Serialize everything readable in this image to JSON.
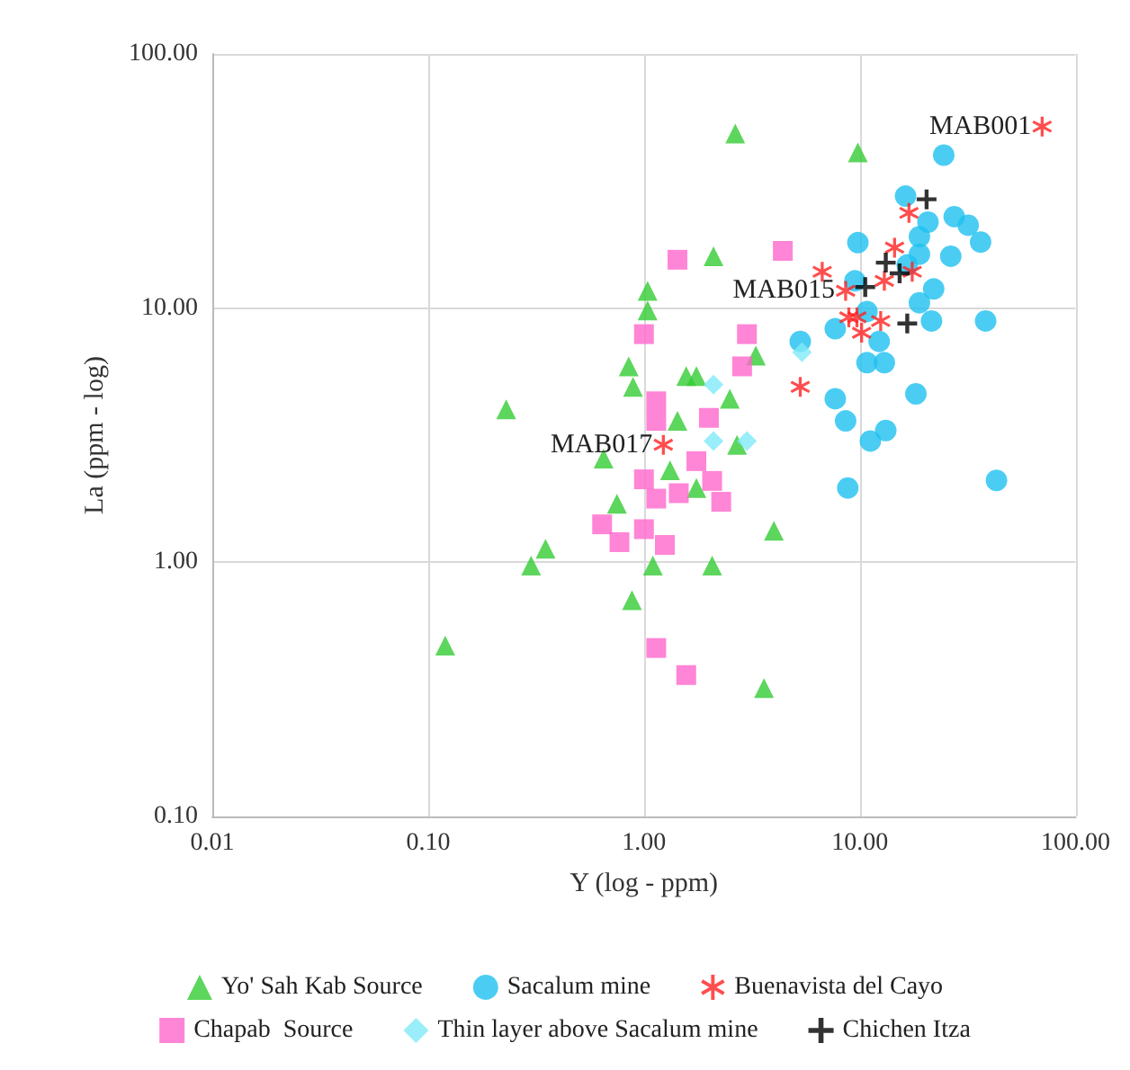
{
  "chart_data": {
    "type": "scatter",
    "xlabel": "Y (log - ppm)",
    "ylabel": "La (ppm - log)",
    "log": "xy",
    "grid": true,
    "legend": "bottom",
    "xlim": [
      0.01,
      100
    ],
    "ylim": [
      0.1,
      100
    ],
    "xticks": [
      {
        "value": 0.01,
        "label": "0.01"
      },
      {
        "value": 0.1,
        "label": "0.10"
      },
      {
        "value": 1,
        "label": "1.00"
      },
      {
        "value": 10,
        "label": "10.00"
      },
      {
        "value": 100,
        "label": "100.00"
      }
    ],
    "yticks": [
      {
        "value": 0.1,
        "label": "0.10"
      },
      {
        "value": 1,
        "label": "1.00"
      },
      {
        "value": 10,
        "label": "10.00"
      },
      {
        "value": 100,
        "label": "100.00"
      }
    ],
    "annotations": [
      {
        "text": "MAB001",
        "x": 70,
        "y": 51.8
      },
      {
        "text": "MAB015",
        "x": 8.6,
        "y": 11.7
      },
      {
        "text": "MAB017",
        "x": 1.23,
        "y": 2.9
      }
    ],
    "series": [
      {
        "name": "Yo' Sah Kab Source",
        "color": "#33cc33",
        "marker": "triangle",
        "x": [
          0.12,
          0.23,
          0.3,
          0.35,
          0.65,
          0.75,
          0.85,
          0.89,
          0.88,
          1.04,
          1.04,
          1.1,
          1.32,
          1.43,
          1.57,
          1.75,
          1.75,
          2.07,
          2.1,
          2.5,
          2.65,
          2.7,
          3.3,
          3.6,
          4.0,
          9.8
        ],
        "values": [
          0.47,
          4.0,
          0.97,
          1.13,
          2.56,
          1.7,
          5.9,
          4.9,
          0.71,
          11.7,
          9.8,
          0.97,
          2.3,
          3.6,
          5.4,
          5.4,
          1.96,
          0.97,
          16.0,
          4.4,
          48.6,
          2.9,
          6.5,
          0.32,
          1.33,
          41
        ]
      },
      {
        "name": "Sacalum mine",
        "color": "#1ec0f0",
        "marker": "circle",
        "x": [
          24.5,
          16.3,
          20.7,
          27.4,
          31.8,
          36.3,
          26.4,
          18.9,
          18.9,
          9.8,
          9.5,
          22,
          18.9,
          21.5,
          38.3,
          7.7,
          10.8,
          13,
          5.3,
          18.2,
          7.7,
          8.6,
          11.2,
          13.2,
          8.8,
          43,
          10.8,
          14.3,
          16.6,
          12.3
        ],
        "values": [
          40,
          27.6,
          21.8,
          22.9,
          21.2,
          18.2,
          16.0,
          19.1,
          16.3,
          18.1,
          12.8,
          11.9,
          10.5,
          8.9,
          8.9,
          8.3,
          6.1,
          6.1,
          7.4,
          4.6,
          4.4,
          3.6,
          3.0,
          3.3,
          1.96,
          2.1,
          9.7,
          null,
          14.8,
          7.4
        ]
      },
      {
        "name": "Buenavista del Cayo",
        "color": "#ff2020",
        "marker": "star",
        "x": [
          70,
          16.9,
          14.5,
          6.7,
          17.5,
          13,
          8.6,
          12.5,
          8.9,
          10.2,
          9.7,
          5.3,
          1.23
        ],
        "values": [
          51.8,
          23.7,
          17.3,
          13.9,
          13.9,
          12.8,
          11.7,
          8.9,
          9.2,
          8.0,
          9.2,
          4.9,
          2.9
        ]
      },
      {
        "name": "Chapab  Source",
        "color": "#ff66cc",
        "marker": "square",
        "x": [
          1.43,
          1.0,
          3.0,
          2.85,
          1.14,
          4.4,
          1.14,
          2.0,
          1.75,
          1.0,
          1.14,
          1.45,
          2.07,
          2.28,
          0.64,
          0.77,
          1.0,
          1.25,
          1.14,
          1.57
        ],
        "values": [
          15.5,
          7.9,
          7.9,
          5.9,
          4.3,
          16.8,
          3.6,
          3.7,
          2.5,
          2.12,
          1.78,
          1.87,
          2.09,
          1.73,
          1.41,
          1.2,
          1.35,
          1.17,
          0.46,
          0.36
        ]
      },
      {
        "name": "Thin layer above Sacalum mine",
        "color": "#80eaf8",
        "marker": "diamond",
        "x": [
          2.1,
          3.0,
          2.1,
          5.4
        ],
        "values": [
          3.0,
          3.0,
          5.0,
          6.7
        ]
      },
      {
        "name": "Chichen Itza",
        "color": "#000000",
        "marker": "cross",
        "x": [
          20.4,
          13.2,
          15.3,
          10.6,
          16.6
        ],
        "values": [
          26.8,
          15.1,
          13.7,
          12.1,
          8.7
        ]
      }
    ]
  }
}
